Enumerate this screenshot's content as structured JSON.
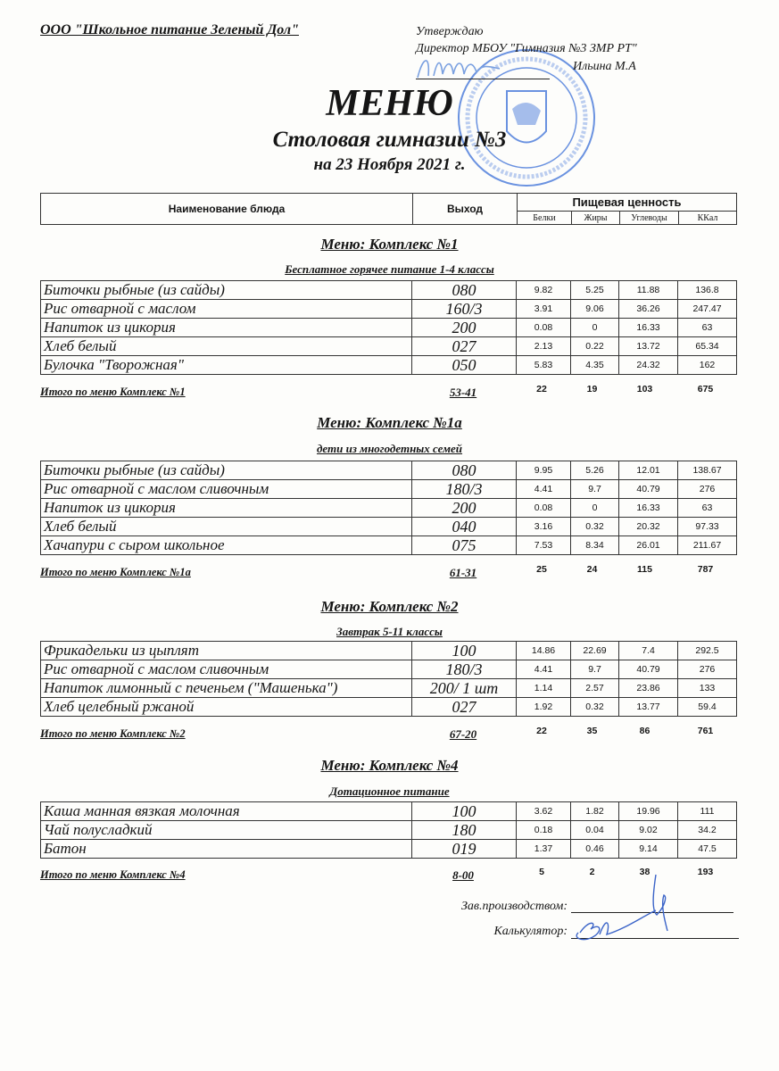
{
  "header": {
    "organization": "ООО \"Школьное питание Зеленый Дол\"",
    "approve": "Утверждаю",
    "director": "Директор МБОУ \"Гимназия №3 ЗМР РТ\"",
    "director_name": "Ильина М.А",
    "title": "МЕНЮ",
    "subtitle": "Столовая гимназии №3",
    "date": "на 23 Ноября 2021 г.",
    "stamp_text": "МУНИЦИПАЛЬНОЕ БЮДЖЕТНОЕ ОБЩЕОБРАЗОВАТЕЛЬНОЕ УЧРЕЖДЕНИЕ \"ГИМНАЗИЯ №3\" ЗЕЛЕНОДОЛЬСКОГО МУНИЦИПАЛЬНОГО РАЙОНА РЕСПУБЛИКИ ТАТАРСТАН ОГРН 1021606755257 ИНН 1648004751"
  },
  "table_header": {
    "name": "Наименование блюда",
    "output": "Выход",
    "nutrition": "Пищевая ценность",
    "cols": [
      "Белки",
      "Жиры",
      "Углеводы",
      "ККал"
    ]
  },
  "sections": [
    {
      "title": "Меню: Комплекс №1",
      "subtitle": "Бесплатное горячее питание  1-4 классы",
      "rows": [
        {
          "name": "Биточки рыбные (из сайды)",
          "output": "080",
          "values": [
            "9.82",
            "5.25",
            "11.88",
            "136.8"
          ]
        },
        {
          "name": "Рис отварной с маслом",
          "output": "160/3",
          "values": [
            "3.91",
            "9.06",
            "36.26",
            "247.47"
          ]
        },
        {
          "name": "Напиток из цикория",
          "output": "200",
          "values": [
            "0.08",
            "0",
            "16.33",
            "63"
          ]
        },
        {
          "name": "Хлеб  белый",
          "output": "027",
          "values": [
            "2.13",
            "0.22",
            "13.72",
            "65.34"
          ]
        },
        {
          "name": "Булочка \"Творожная\"",
          "output": "050",
          "values": [
            "5.83",
            "4.35",
            "24.32",
            "162"
          ]
        }
      ],
      "total": {
        "label": "Итого по меню Комплекс №1",
        "price": "53-41",
        "values": [
          "22",
          "19",
          "103",
          "675"
        ]
      }
    },
    {
      "title": "Меню: Комплекс №1а",
      "subtitle": "дети из многодетных семей",
      "rows": [
        {
          "name": "Биточки рыбные (из сайды)",
          "output": "080",
          "values": [
            "9.95",
            "5.26",
            "12.01",
            "138.67"
          ]
        },
        {
          "name": "Рис отварной с маслом сливочным",
          "output": "180/3",
          "values": [
            "4.41",
            "9.7",
            "40.79",
            "276"
          ]
        },
        {
          "name": "Напиток из цикория",
          "output": "200",
          "values": [
            "0.08",
            "0",
            "16.33",
            "63"
          ]
        },
        {
          "name": "Хлеб белый",
          "output": "040",
          "values": [
            "3.16",
            "0.32",
            "20.32",
            "97.33"
          ]
        },
        {
          "name": "Хачапури с сыром школьное",
          "output": "075",
          "values": [
            "7.53",
            "8.34",
            "26.01",
            "211.67"
          ]
        }
      ],
      "total": {
        "label": "Итого по меню Комплекс №1а",
        "price": "61-31",
        "values": [
          "25",
          "24",
          "115",
          "787"
        ]
      }
    },
    {
      "title": "Меню: Комплекс №2",
      "subtitle": "Завтрак 5-11 классы",
      "rows": [
        {
          "name": "Фрикадельки из цыплят",
          "output": "100",
          "values": [
            "14.86",
            "22.69",
            "7.4",
            "292.5"
          ]
        },
        {
          "name": "Рис отварной с маслом сливочным",
          "output": "180/3",
          "values": [
            "4.41",
            "9.7",
            "40.79",
            "276"
          ]
        },
        {
          "name": "Напиток лимонный  с печеньем (\"Машенька\")",
          "output": "200/ 1 шт",
          "values": [
            "1.14",
            "2.57",
            "23.86",
            "133"
          ]
        },
        {
          "name": "Хлеб  целебный ржаной",
          "output": "027",
          "values": [
            "1.92",
            "0.32",
            "13.77",
            "59.4"
          ]
        }
      ],
      "total": {
        "label": "Итого по меню Комплекс №2",
        "price": "67-20",
        "values": [
          "22",
          "35",
          "86",
          "761"
        ]
      }
    },
    {
      "title": "Меню: Комплекс №4",
      "subtitle": "Дотационное питание",
      "rows": [
        {
          "name": "Каша манная вязкая молочная",
          "output": "100",
          "values": [
            "3.62",
            "1.82",
            "19.96",
            "111"
          ]
        },
        {
          "name": "Чай полусладкий",
          "output": "180",
          "values": [
            "0.18",
            "0.04",
            "9.02",
            "34.2"
          ]
        },
        {
          "name": "Батон",
          "output": "019",
          "values": [
            "1.37",
            "0.46",
            "9.14",
            "47.5"
          ]
        }
      ],
      "total": {
        "label": "Итого по меню Комплекс №4",
        "price": "8-00",
        "values": [
          "5",
          "2",
          "38",
          "193"
        ]
      }
    }
  ],
  "signatures": {
    "production_head": "Зав.производством:",
    "calculator": "Калькулятор:"
  },
  "colors": {
    "stamp": "#3a6fd8",
    "signature": "#3b64c8",
    "ink": "#151515"
  }
}
